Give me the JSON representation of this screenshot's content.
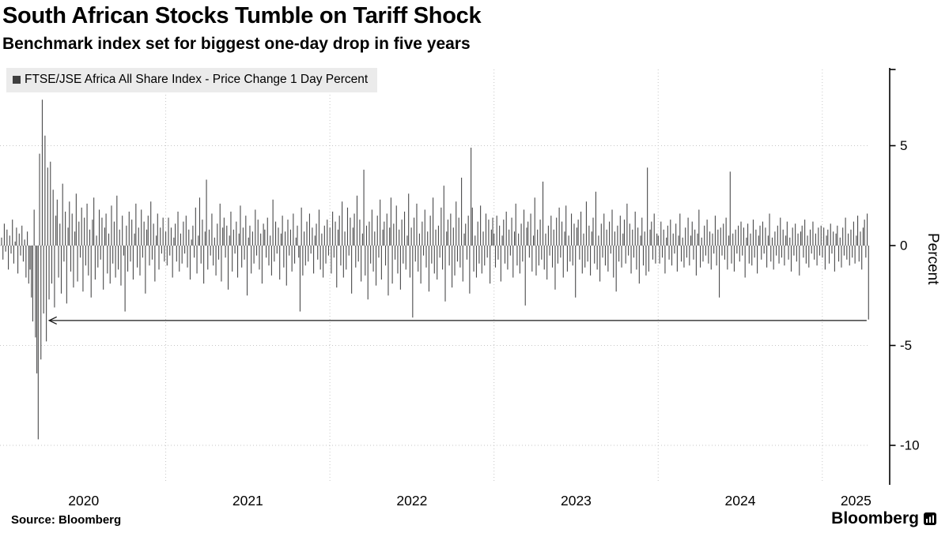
{
  "header": {
    "title": "South African Stocks Tumble on Tariff Shock",
    "subtitle": "Benchmark index set for biggest one-day drop in five years"
  },
  "legend": {
    "label": "FTSE/JSE Africa All Share Index - Price Change 1 Day Percent",
    "marker_color": "#3f3f3f"
  },
  "footer": {
    "source": "Source: Bloomberg",
    "brand": "Bloomberg"
  },
  "chart_data": {
    "type": "bar",
    "title": "FTSE/JSE Africa All Share Index - Price Change 1 Day Percent",
    "ylabel": "Percent",
    "y_ticks": [
      5,
      0,
      -5,
      -10
    ],
    "ylim": [
      -11.9,
      8.8
    ],
    "x_start_year": 2020.0,
    "x_end_year": 2025.29,
    "x_tick_years": [
      2020,
      2021,
      2022,
      2023,
      2024,
      2025
    ],
    "grid": "dotted",
    "legend_position": "top-left",
    "bar_color": "#4a4a4b",
    "annotation": {
      "type": "horizontal-arrow-left",
      "y_value": -3.75,
      "x_from_year": 2025.27,
      "x_to_year": 2020.29
    },
    "key_points": [
      {
        "x_year": 2020.22,
        "value": -9.7
      },
      {
        "x_year": 2020.25,
        "value": 7.3
      },
      {
        "x_year": 2022.86,
        "value": 4.9
      },
      {
        "x_year": 2023.93,
        "value": 3.9
      },
      {
        "x_year": 2024.44,
        "value": 3.7
      },
      {
        "x_year": 2025.27,
        "value": -3.7
      }
    ],
    "values": [
      0.4,
      -0.7,
      1.1,
      -0.3,
      0.8,
      -1.2,
      0.5,
      -0.4,
      1.3,
      -0.9,
      0.2,
      0.9,
      -1.4,
      0.6,
      -0.5,
      1.0,
      -0.8,
      0.3,
      -1.6,
      0.7,
      -1.9,
      -1.2,
      -2.6,
      -3.8,
      1.8,
      -4.6,
      -6.4,
      -9.7,
      4.6,
      -5.7,
      7.3,
      -3.4,
      5.5,
      -4.8,
      3.9,
      -2.7,
      4.2,
      -1.9,
      2.8,
      -3.1,
      1.5,
      2.3,
      -1.6,
      1.1,
      -2.4,
      3.1,
      -0.8,
      1.7,
      -2.9,
      0.9,
      2.2,
      -1.3,
      1.6,
      -2.1,
      0.7,
      2.6,
      -1.8,
      1.2,
      -0.6,
      1.9,
      -2.3,
      1.4,
      -1.0,
      2.1,
      -1.5,
      0.8,
      -2.6,
      1.3,
      2.4,
      -1.7,
      0.5,
      -1.1,
      1.8,
      -0.7,
      1.4,
      -2.2,
      0.9,
      1.6,
      -1.4,
      0.6,
      -1.9,
      2.0,
      -0.9,
      1.2,
      -1.6,
      2.5,
      -1.2,
      0.8,
      -2.0,
      1.5,
      -0.5,
      -3.3,
      1.0,
      -1.3,
      1.7,
      -0.8,
      1.3,
      -1.7,
      0.6,
      2.1,
      -1.1,
      0.9,
      -1.5,
      1.8,
      -0.6,
      1.2,
      -2.4,
      0.8,
      1.5,
      -1.0,
      2.2,
      -0.7,
      1.1,
      -1.8,
      0.5,
      1.6,
      -1.2,
      0.9,
      -0.4,
      1.4,
      -0.8,
      0.7,
      -1.0,
      1.4,
      -0.5,
      0.9,
      -1.6,
      0.4,
      1.1,
      -0.8,
      1.7,
      -1.3,
      0.6,
      -0.9,
      1.2,
      -0.4,
      1.5,
      -1.1,
      0.8,
      -1.7,
      0.3,
      1.0,
      -0.6,
      1.9,
      -1.4,
      0.5,
      2.4,
      -0.9,
      1.3,
      -1.9,
      0.7,
      3.3,
      -1.2,
      0.8,
      -0.5,
      1.6,
      -1.0,
      0.4,
      -1.5,
      1.1,
      -0.7,
      2.1,
      -1.8,
      0.9,
      1.4,
      -0.6,
      1.0,
      -2.2,
      0.5,
      1.7,
      -1.3,
      0.8,
      -0.4,
      1.2,
      -1.6,
      0.6,
      2.0,
      -1.1,
      0.9,
      -0.7,
      1.5,
      -2.5,
      0.4,
      1.0,
      -1.4,
      0.7,
      -0.9,
      1.8,
      -0.5,
      1.3,
      -1.2,
      0.6,
      -1.9,
      1.1,
      0.8,
      -0.6,
      1.4,
      -1.0,
      0.5,
      -1.5,
      2.3,
      -0.8,
      1.2,
      -0.4,
      0.9,
      -1.7,
      0.6,
      1.5,
      -1.1,
      0.7,
      -2.0,
      1.3,
      -0.5,
      0.8,
      -1.3,
      1.6,
      -0.9,
      0.4,
      1.0,
      -0.6,
      -3.3,
      1.9,
      -1.5,
      0.7,
      -1.0,
      1.2,
      -0.8,
      1.6,
      -0.4,
      0.9,
      -1.4,
      0.5,
      1.1,
      -0.7,
      1.8,
      -1.2,
      0.6,
      -1.6,
      1.0,
      -0.9,
      1.3,
      -0.5,
      0.9,
      -1.4,
      1.7,
      -0.6,
      1.2,
      -2.1,
      0.8,
      1.5,
      -1.0,
      2.2,
      -1.6,
      0.7,
      -1.2,
      1.9,
      -0.5,
      1.4,
      -2.4,
      0.9,
      1.6,
      -1.1,
      2.5,
      -0.8,
      1.3,
      -1.8,
      0.6,
      3.8,
      -1.5,
      1.0,
      -2.7,
      1.2,
      -0.9,
      1.8,
      -1.3,
      0.7,
      -2.0,
      1.5,
      -0.6,
      2.3,
      -1.7,
      0.8,
      1.2,
      -1.0,
      1.6,
      -2.5,
      0.9,
      2.4,
      -1.9,
      1.1,
      -0.7,
      2.0,
      -1.4,
      0.8,
      -2.2,
      1.3,
      -0.9,
      1.7,
      -1.2,
      0.5,
      2.6,
      -1.6,
      0.9,
      -3.6,
      1.4,
      -0.8,
      2.1,
      -1.3,
      0.6,
      -1.9,
      1.2,
      -0.5,
      1.8,
      -1.1,
      0.7,
      -2.3,
      1.5,
      -0.9,
      2.4,
      -1.4,
      0.8,
      -1.7,
      1.0,
      -0.6,
      1.9,
      -1.2,
      3.0,
      -2.8,
      0.7,
      1.3,
      -1.0,
      1.6,
      -2.1,
      0.9,
      -1.5,
      2.2,
      -0.8,
      1.4,
      -1.1,
      3.4,
      -1.8,
      0.6,
      1.1,
      -0.7,
      1.5,
      -2.4,
      4.9,
      1.9,
      -1.3,
      0.5,
      -1.6,
      1.2,
      -0.9,
      2.0,
      -1.4,
      0.7,
      -1.0,
      1.6,
      -0.6,
      1.3,
      -1.9,
      0.8,
      1.4,
      0.6,
      -1.1,
      1.5,
      -0.7,
      1.0,
      -1.8,
      0.5,
      1.3,
      -0.9,
      1.7,
      -1.2,
      0.8,
      -0.5,
      1.4,
      -1.6,
      0.7,
      2.1,
      -1.0,
      0.6,
      -1.4,
      1.1,
      -0.8,
      1.8,
      -3.0,
      0.9,
      1.2,
      -0.6,
      1.6,
      -1.3,
      0.5,
      2.4,
      -1.5,
      0.8,
      -1.0,
      1.3,
      -0.7,
      3.2,
      -1.2,
      0.6,
      -1.7,
      1.0,
      -0.5,
      1.5,
      -1.1,
      0.8,
      -2.2,
      1.4,
      -0.9,
      1.9,
      -0.6,
      1.2,
      -1.6,
      0.7,
      2.0,
      -1.3,
      0.5,
      -0.8,
      1.6,
      -1.0,
      1.1,
      -2.6,
      0.9,
      1.3,
      -0.7,
      1.7,
      -1.4,
      0.6,
      -1.1,
      2.2,
      -0.8,
      1.0,
      -1.5,
      0.7,
      1.4,
      -0.9,
      2.7,
      -1.2,
      0.5,
      -1.8,
      1.1,
      -0.6,
      1.6,
      -1.0,
      0.8,
      -1.3,
      1.2,
      -0.4,
      1.8,
      -1.6,
      0.7,
      -2.3,
      1.0,
      -0.8,
      1.5,
      -1.1,
      0.6,
      1.3,
      -0.9,
      2.1,
      -0.5,
      1.1,
      -1.4,
      0.8,
      -0.6,
      1.7,
      -1.2,
      0.9,
      -1.9,
      0.5,
      1.4,
      -1.0,
      0.7,
      -1.5,
      3.9,
      -1.3,
      0.8,
      1.2,
      -0.7,
      1.6,
      -0.9,
      0.6,
      0.5,
      -0.9,
      1.2,
      -0.6,
      0.8,
      -1.4,
      0.4,
      1.0,
      -0.7,
      1.3,
      -1.0,
      0.6,
      -0.4,
      1.1,
      -1.3,
      0.5,
      1.6,
      -0.8,
      0.4,
      -1.1,
      0.9,
      -0.6,
      1.4,
      -1.0,
      0.5,
      1.2,
      -0.7,
      0.8,
      -1.5,
      0.6,
      1.8,
      -1.1,
      0.4,
      -0.8,
      1.0,
      -0.5,
      1.3,
      -0.9,
      0.7,
      -1.2,
      0.6,
      -0.4,
      1.5,
      -1.0,
      0.8,
      -2.6,
      0.9,
      -0.5,
      1.1,
      -0.7,
      1.4,
      -1.2,
      0.5,
      3.7,
      -0.9,
      0.6,
      -1.3,
      0.8,
      -0.4,
      1.0,
      -0.8,
      1.2,
      -0.5,
      0.9,
      -1.6,
      0.4,
      1.1,
      -0.9,
      0.6,
      -1.0,
      1.3,
      -0.6,
      0.8,
      -1.4,
      0.5,
      1.0,
      -0.7,
      1.2,
      -0.4,
      0.9,
      -1.1,
      0.5,
      1.6,
      -0.8,
      0.4,
      -1.2,
      0.7,
      -0.5,
      1.0,
      -0.9,
      1.4,
      -0.6,
      0.8,
      -1.0,
      0.5,
      1.2,
      -0.7,
      0.4,
      -1.3,
      0.9,
      -0.5,
      1.1,
      -0.8,
      0.6,
      -1.5,
      0.7,
      1.0,
      -0.6,
      1.3,
      -0.9,
      0.5,
      -1.1,
      0.8,
      -0.4,
      1.2,
      -0.7,
      0.6,
      -1.0,
      0.9,
      -0.5,
      1.0,
      -0.6,
      0.9,
      -1.2,
      0.5,
      0.8,
      -0.9,
      1.1,
      -0.4,
      0.7,
      -1.3,
      0.6,
      1.0,
      -0.8,
      0.4,
      -1.1,
      0.9,
      -0.5,
      1.4,
      -0.7,
      0.6,
      -1.0,
      0.8,
      -0.6,
      1.2,
      -0.9,
      0.5,
      1.5,
      -0.8,
      0.7,
      -1.2,
      0.9,
      1.3,
      -0.6,
      1.6,
      -3.7
    ]
  }
}
